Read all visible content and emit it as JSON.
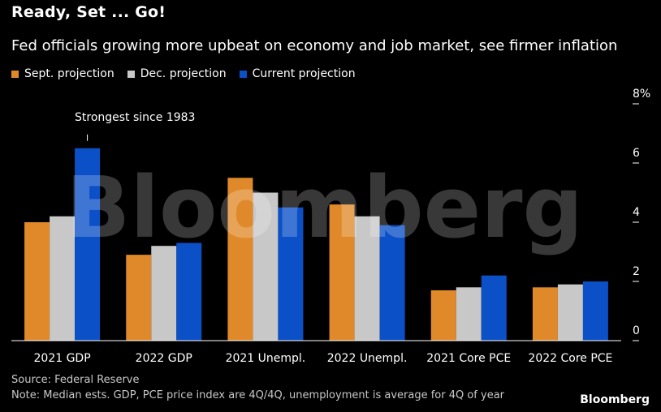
{
  "title": "Ready, Set ... Go!",
  "subtitle": "Fed officials growing more upbeat on economy and job market, see firmer inflation",
  "source": "Source: Federal Reserve",
  "note": "Note: Median ests. GDP, PCE price index are 4Q/4Q, unemployment is average for 4Q of year",
  "brand": "Bloomberg",
  "watermark": "Bloomberg",
  "colors": {
    "sept": "#e0892a",
    "dec": "#c8c8c8",
    "current": "#0b50c7",
    "axis": "#ffffff"
  },
  "chart_data": {
    "type": "bar",
    "title": "Ready, Set ... Go!",
    "subtitle": "Fed officials growing more upbeat on economy and job market, see firmer inflation",
    "categories": [
      "2021 GDP",
      "2022 GDP",
      "2021 Unempl.",
      "2022 Unempl.",
      "2021 Core PCE",
      "2022 Core PCE"
    ],
    "series": [
      {
        "name": "Sept. projection",
        "color": "#e0892a",
        "values": [
          4.0,
          2.9,
          5.5,
          4.6,
          1.7,
          1.8
        ]
      },
      {
        "name": "Dec. projection",
        "color": "#c8c8c8",
        "values": [
          4.2,
          3.2,
          5.0,
          4.2,
          1.8,
          1.9
        ]
      },
      {
        "name": "Current projection",
        "color": "#0b50c7",
        "values": [
          6.5,
          3.3,
          4.5,
          3.9,
          2.2,
          2.0
        ]
      }
    ],
    "yticks": [
      0,
      2,
      4,
      6,
      8
    ],
    "ytick_labels": [
      "0",
      "2",
      "4",
      "6",
      "8%"
    ],
    "ylim": [
      0,
      8
    ],
    "legend_position": "top-left",
    "grid": false,
    "annotations": [
      {
        "text": "Strongest since 1983",
        "category": "2021 GDP",
        "series": "Current projection"
      }
    ]
  }
}
